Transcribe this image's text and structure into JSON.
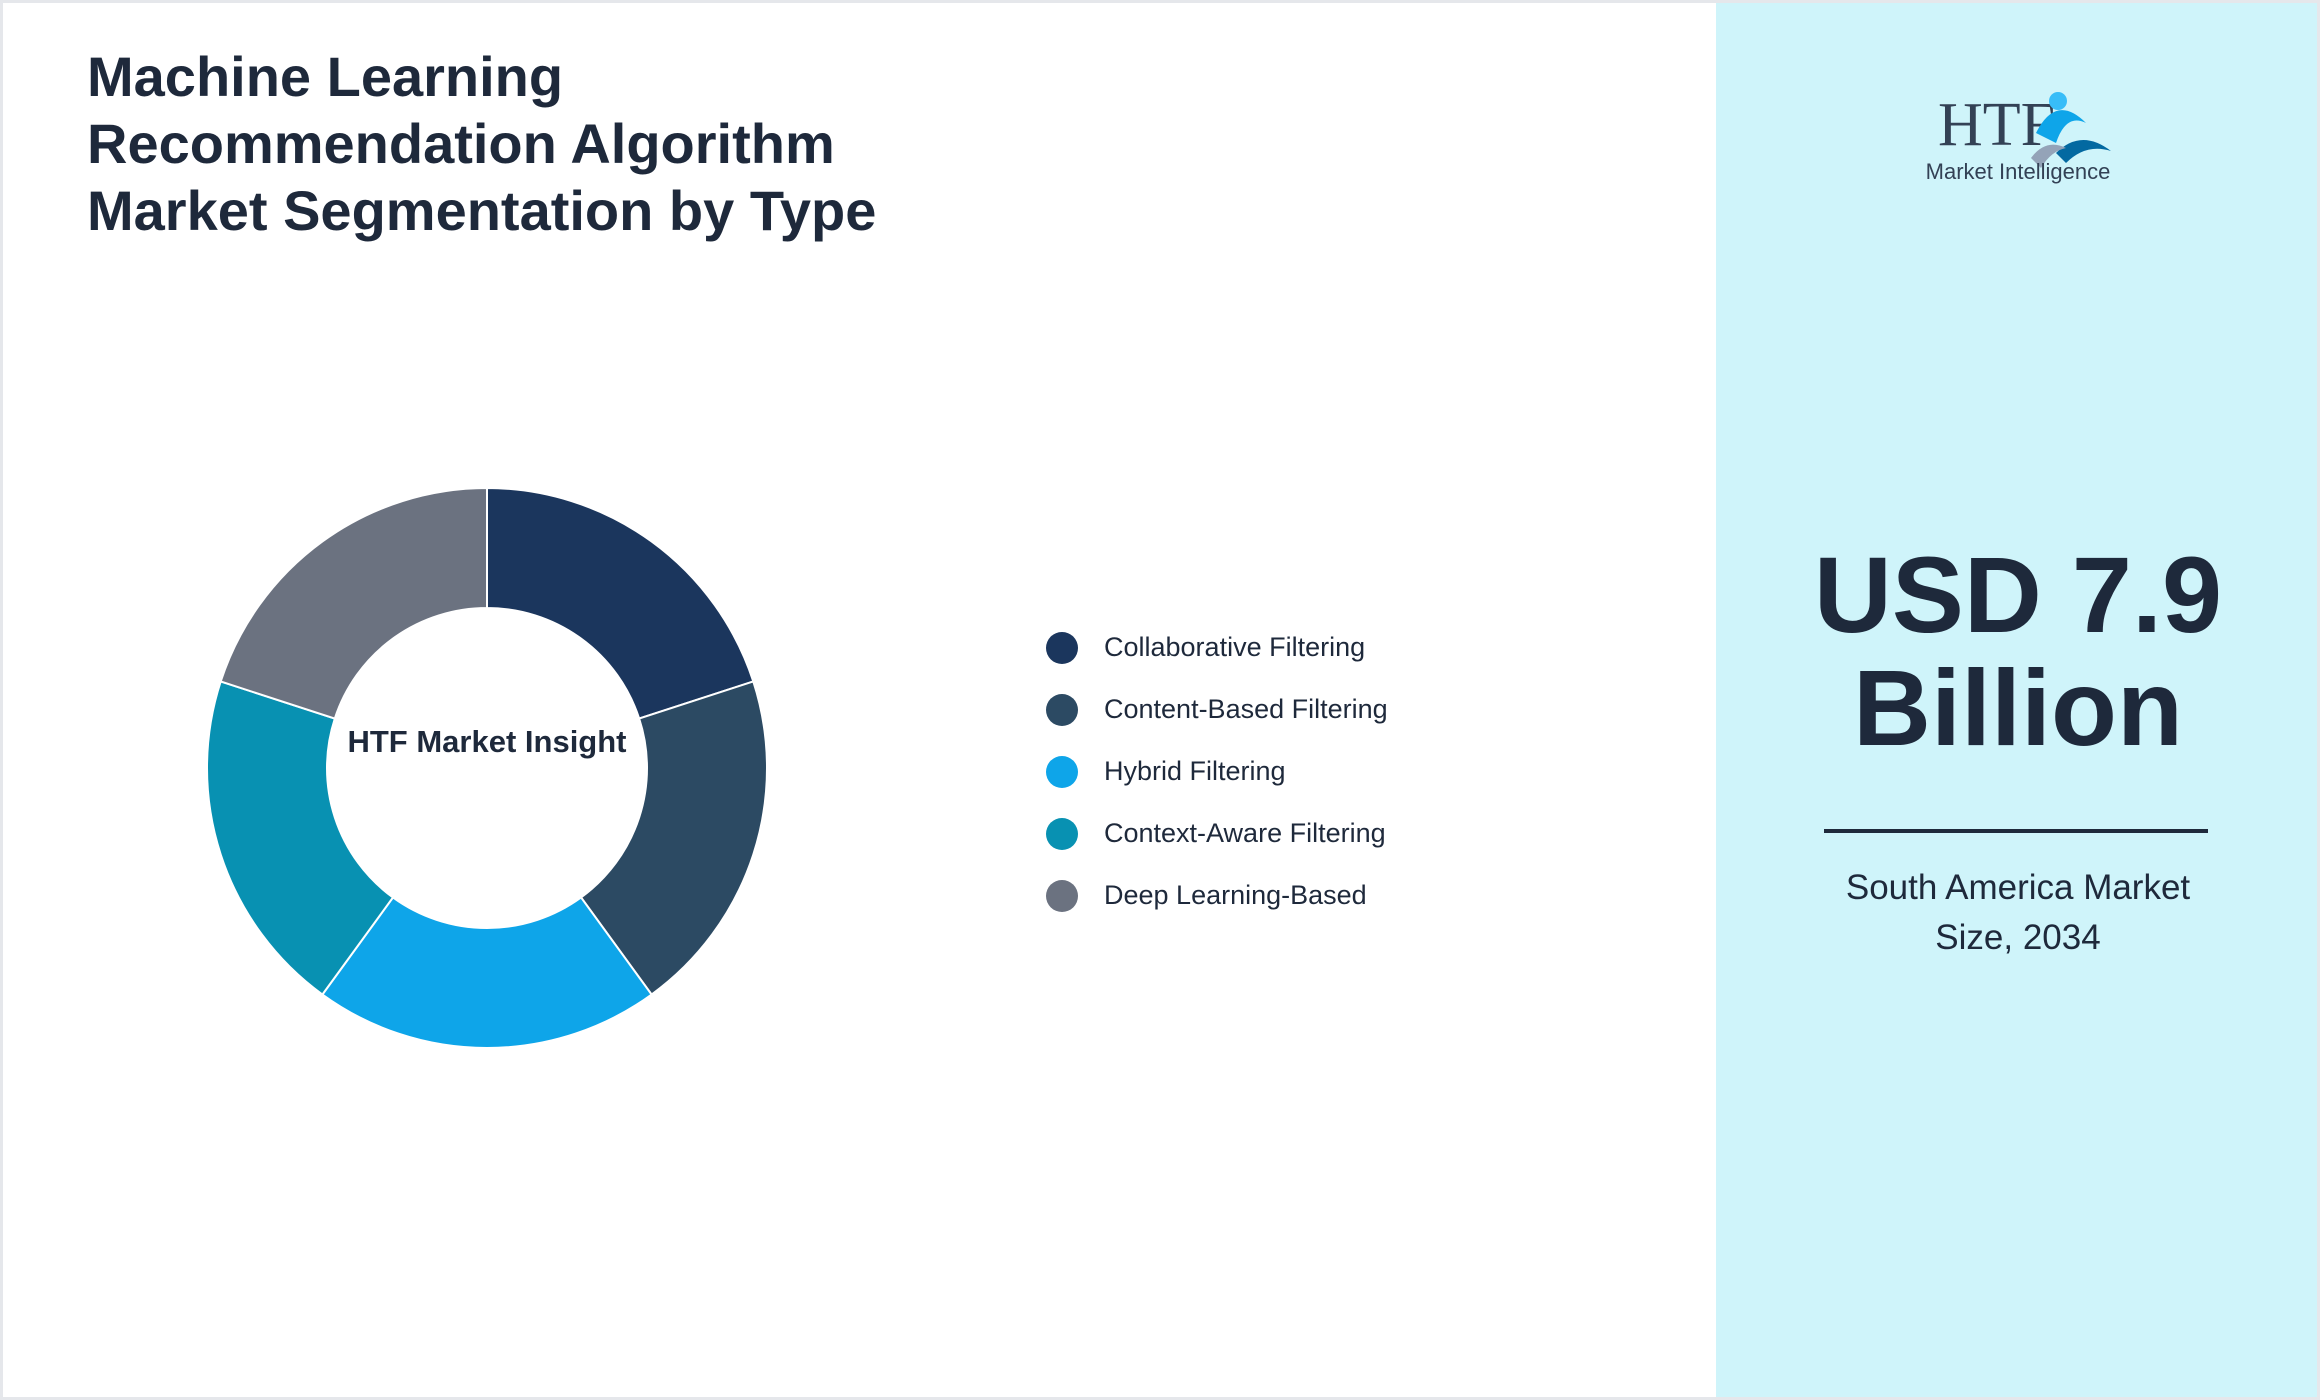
{
  "chart_data": {
    "type": "pie",
    "donut": true,
    "title": "Machine Learning Recommendation Algorithm Market Segmentation by Type",
    "center_label": "HTF Market Insight",
    "categories": [
      "Collaborative Filtering",
      "Content-Based Filtering",
      "Hybrid Filtering",
      "Context-Aware Filtering",
      "Deep Learning-Based"
    ],
    "values": [
      20,
      20,
      20,
      20,
      20
    ],
    "colors": [
      "#1b365d",
      "#2c4a63",
      "#0ea5e9",
      "#0891b2",
      "#6b7280"
    ],
    "legend": "right"
  },
  "side_panel": {
    "logo": {
      "name": "HTF",
      "tagline": "Market Intelligence"
    },
    "headline": "USD 7.9 Billion",
    "caption": "South America Market Size, 2034"
  }
}
